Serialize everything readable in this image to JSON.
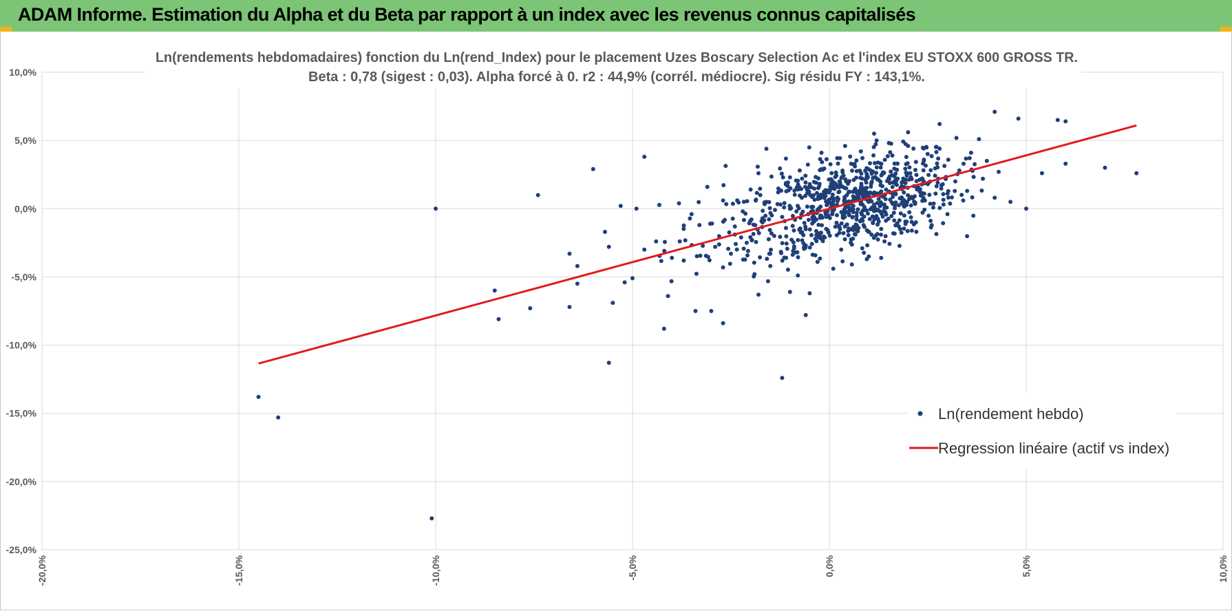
{
  "banner": {
    "title": "ADAM Informe. Estimation du Alpha et du Beta par rapport à un index avec les revenus connus capitalisés",
    "background": "#7cc576",
    "corner_color": "#f2b21a"
  },
  "chart_data": {
    "type": "scatter",
    "title": "Ln(rendements hebdomadaires) fonction du Ln(rend_Index) pour le placement Uzes Boscary Selection Ac et l'index EU STOXX 600 GROSS TR.",
    "subtitle": "Beta : 0,78 (sigest : 0,03). Alpha forcé à 0. r2 : 44,9% (corrél. médiocre). Sig résidu FY : 143,1%.",
    "xlabel": "",
    "ylabel": "",
    "xlim": [
      -20,
      10
    ],
    "ylim": [
      -25,
      10
    ],
    "xticks": [
      -20,
      -15,
      -10,
      -5,
      0,
      5,
      10
    ],
    "yticks": [
      10,
      5,
      0,
      -5,
      -10,
      -15,
      -20,
      -25
    ],
    "xtick_labels": [
      "-20,0%",
      "-15,0%",
      "-10,0%",
      "-5,0%",
      "0,0%",
      "5,0%",
      "10,0%"
    ],
    "ytick_labels": [
      "10,0%",
      "5,0%",
      "0,0%",
      "-5,0%",
      "-10,0%",
      "-15,0%",
      "-20,0%",
      "-25,0%"
    ],
    "grid": true,
    "legend_position": "bottom-right",
    "series": [
      {
        "name": "Ln(rendement hebdo)",
        "kind": "scatter",
        "color": "#1f3f77",
        "points": [
          [
            -14.5,
            -13.8
          ],
          [
            -14.0,
            -15.3
          ],
          [
            -10.0,
            0.0
          ],
          [
            -10.1,
            -22.7
          ],
          [
            -7.4,
            1.0
          ],
          [
            -7.6,
            -7.3
          ],
          [
            -8.5,
            -6.0
          ],
          [
            -8.4,
            -8.1
          ],
          [
            -6.6,
            -3.3
          ],
          [
            -6.6,
            -7.2
          ],
          [
            -6.4,
            -4.2
          ],
          [
            -6.4,
            -5.5
          ],
          [
            -6.0,
            2.9
          ],
          [
            -5.6,
            -11.3
          ],
          [
            -5.5,
            -6.9
          ],
          [
            -5.3,
            0.2
          ],
          [
            -5.2,
            -5.4
          ],
          [
            -5.0,
            -5.1
          ],
          [
            -4.9,
            0.0
          ],
          [
            -4.7,
            3.8
          ],
          [
            -4.2,
            -8.8
          ],
          [
            -4.1,
            -6.4
          ],
          [
            -3.4,
            -7.5
          ],
          [
            -3.0,
            -7.5
          ],
          [
            -2.7,
            -8.4
          ],
          [
            -1.8,
            -6.3
          ],
          [
            -1.5,
            -4.2
          ],
          [
            -1.0,
            -6.1
          ],
          [
            -1.2,
            -12.4
          ],
          [
            -0.6,
            -7.8
          ],
          [
            -0.5,
            -6.2
          ],
          [
            2.0,
            5.6
          ],
          [
            2.8,
            6.2
          ],
          [
            4.2,
            7.1
          ],
          [
            4.8,
            6.6
          ],
          [
            5.8,
            6.5
          ],
          [
            6.0,
            3.3
          ],
          [
            6.0,
            6.4
          ],
          [
            7.0,
            3.0
          ],
          [
            7.8,
            2.6
          ],
          [
            5.0,
            0.0
          ],
          [
            5.4,
            2.6
          ],
          [
            -4.7,
            -3.0
          ],
          [
            -5.6,
            -2.8
          ],
          [
            -5.7,
            -1.7
          ],
          [
            -4.4,
            -2.4
          ],
          [
            -4.0,
            -3.6
          ],
          [
            -3.8,
            -2.4
          ],
          [
            -3.7,
            -3.8
          ],
          [
            -3.5,
            -0.4
          ],
          [
            -3.3,
            -1.2
          ],
          [
            -3.1,
            1.6
          ],
          [
            -2.7,
            0.6
          ],
          [
            -2.9,
            -2.8
          ],
          [
            -2.5,
            -3.3
          ],
          [
            -2.4,
            -1.3
          ],
          [
            -2.2,
            -0.2
          ],
          [
            -2.1,
            -2.5
          ],
          [
            -2.0,
            1.4
          ],
          [
            -1.9,
            -4.8
          ],
          [
            -1.8,
            2.6
          ],
          [
            -1.7,
            -1.0
          ],
          [
            -1.6,
            0.5
          ],
          [
            -1.5,
            -3.3
          ],
          [
            -1.4,
            -2.0
          ],
          [
            -1.3,
            1.2
          ],
          [
            -1.2,
            -0.6
          ],
          [
            -1.1,
            -3.6
          ],
          [
            -1.0,
            2.3
          ],
          [
            -0.9,
            -1.6
          ],
          [
            -0.8,
            -4.9
          ],
          [
            -0.7,
            0.8
          ],
          [
            -0.6,
            -2.7
          ],
          [
            -0.5,
            1.8
          ],
          [
            -0.4,
            -0.9
          ],
          [
            -0.3,
            -3.9
          ],
          [
            -0.2,
            4.1
          ],
          [
            -0.2,
            2.9
          ],
          [
            0.1,
            -4.4
          ],
          [
            0.2,
            3.7
          ],
          [
            0.3,
            -3.0
          ],
          [
            0.4,
            4.6
          ],
          [
            0.6,
            -2.2
          ],
          [
            0.8,
            4.2
          ],
          [
            1.0,
            -3.5
          ],
          [
            1.2,
            5.0
          ],
          [
            1.4,
            -2.4
          ],
          [
            1.6,
            3.9
          ],
          [
            1.8,
            -1.5
          ],
          [
            2.0,
            4.6
          ],
          [
            2.2,
            -1.0
          ],
          [
            2.4,
            3.5
          ],
          [
            2.6,
            -1.2
          ],
          [
            2.8,
            4.4
          ],
          [
            3.0,
            -0.4
          ],
          [
            3.2,
            2.0
          ],
          [
            3.4,
            0.6
          ],
          [
            3.6,
            4.1
          ],
          [
            3.8,
            5.1
          ],
          [
            4.0,
            3.5
          ],
          [
            4.2,
            0.8
          ],
          [
            4.3,
            2.7
          ],
          [
            4.6,
            0.5
          ],
          [
            3.3,
            2.8
          ],
          [
            3.5,
            1.3
          ],
          [
            3.9,
            2.2
          ],
          [
            2.9,
            0.3
          ],
          [
            2.5,
            1.8
          ]
        ],
        "cloud_center": [
          0.8,
          0.6
        ],
        "cloud_spread": [
          1.2,
          1.6
        ],
        "cloud_count": 560,
        "scatter_center": [
          -0.4,
          -0.2
        ],
        "scatter_spread": [
          1.9,
          2.1
        ],
        "scatter_count": 260
      },
      {
        "name": "Regression linéaire (actif vs index)",
        "kind": "line",
        "color": "#e31a1c",
        "x": [
          -14.5,
          7.8
        ],
        "y": [
          -11.35,
          6.1
        ],
        "beta": 0.78,
        "alpha": 0
      }
    ]
  }
}
